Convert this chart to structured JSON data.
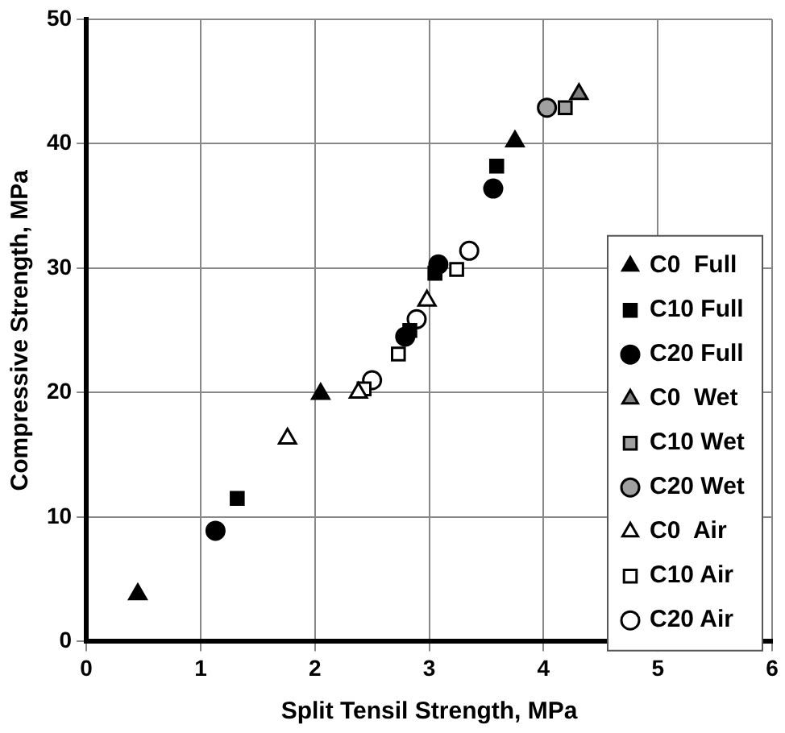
{
  "chart_data": {
    "type": "scatter",
    "xlabel": "Split Tensil Strength, MPa",
    "ylabel": "Compressive Strength, MPa",
    "xlim": [
      0,
      6
    ],
    "xticks": [
      0,
      1,
      2,
      3,
      4,
      5,
      6
    ],
    "ylim": [
      0,
      50
    ],
    "yticks": [
      0,
      10,
      20,
      30,
      40,
      50
    ],
    "grid": true,
    "legend": "right",
    "series": [
      {
        "name": "C0  Full",
        "color": "#000000",
        "marker": "triangle",
        "x": [
          0.45,
          2.05,
          3.75
        ],
        "values": [
          3.8,
          19.9,
          40.2
        ]
      },
      {
        "name": "C10 Full",
        "color": "#000000",
        "marker": "square",
        "x": [
          1.32,
          2.83,
          3.05,
          3.59
        ],
        "values": [
          11.5,
          25,
          29.6,
          38.2
        ]
      },
      {
        "name": "C20 Full",
        "color": "#000000",
        "marker": "circle",
        "x": [
          1.13,
          2.79,
          3.08,
          3.56
        ],
        "values": [
          8.9,
          24.5,
          30.3,
          36.4
        ]
      },
      {
        "name": "C0  Wet",
        "color": "#808080",
        "marker": "triangle",
        "x": [
          4.31
        ],
        "values": [
          44
        ]
      },
      {
        "name": "C10 Wet",
        "color": "#a0a0a0",
        "marker": "square",
        "x": [
          4.19
        ],
        "values": [
          42.9
        ]
      },
      {
        "name": "C20 Wet",
        "color": "#a0a0a0",
        "marker": "circle",
        "x": [
          4.03
        ],
        "values": [
          42.9
        ]
      },
      {
        "name": "C0  Air",
        "color": "#ffffff",
        "marker": "triangle",
        "x": [
          1.76,
          2.38,
          2.98
        ],
        "values": [
          16.3,
          20,
          27.4
        ]
      },
      {
        "name": "C10 Air",
        "color": "#ffffff",
        "marker": "square",
        "x": [
          2.43,
          2.73,
          3.24
        ],
        "values": [
          20.3,
          23.1,
          29.9
        ]
      },
      {
        "name": "C20 Air",
        "color": "#ffffff",
        "marker": "circle",
        "x": [
          2.5,
          2.89,
          3.35
        ],
        "values": [
          21,
          25.9,
          31.4
        ]
      }
    ]
  }
}
